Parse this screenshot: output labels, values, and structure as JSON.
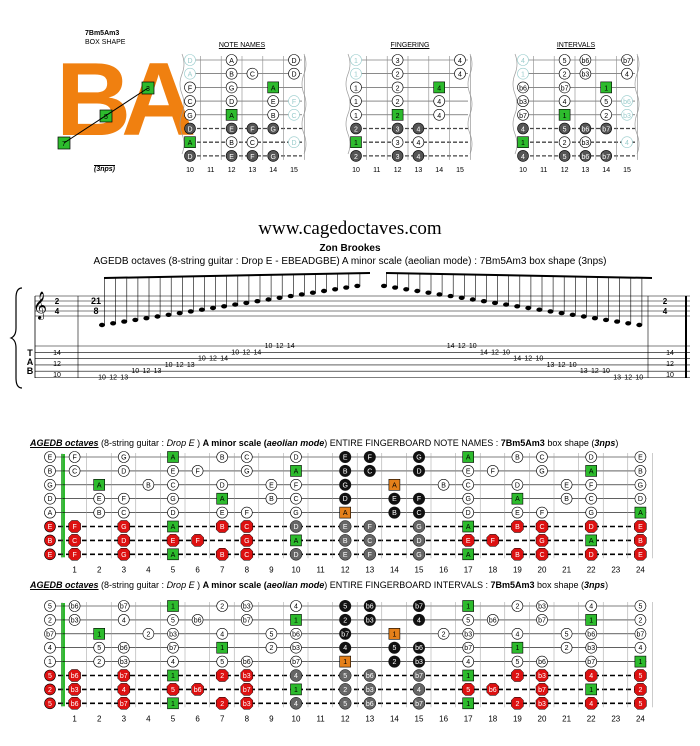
{
  "logo": {
    "shape_name": "7Bm5Am3",
    "box_shape": "BOX SHAPE",
    "letters": "BA",
    "fingers": [
      "3",
      "5",
      "7"
    ],
    "nps": "(3nps)"
  },
  "diagrams": [
    {
      "title": "NOTE NAMES",
      "rows": [
        [
          "D",
          "",
          "A",
          "",
          "",
          "D"
        ],
        [
          "A",
          "",
          "B",
          "C",
          "",
          "D"
        ],
        [
          "F",
          "",
          "G",
          "",
          "A",
          ""
        ],
        [
          "C",
          "",
          "D",
          "",
          "E",
          "F"
        ],
        [
          "G",
          "",
          "A",
          "",
          "B",
          "C"
        ],
        [
          "D",
          "",
          "E",
          "F",
          "G",
          ""
        ],
        [
          "A",
          "",
          "B",
          "C",
          "",
          "D"
        ],
        [
          "D",
          "",
          "E",
          "F",
          "G",
          ""
        ]
      ]
    },
    {
      "title": "FINGERING",
      "rows": [
        [
          "1",
          "",
          "3",
          "",
          "",
          "4"
        ],
        [
          "1",
          "",
          "2",
          "",
          "",
          "4"
        ],
        [
          "1",
          "",
          "2",
          "",
          "4",
          ""
        ],
        [
          "1",
          "",
          "2",
          "",
          "4",
          ""
        ],
        [
          "1",
          "",
          "2",
          "",
          "4",
          ""
        ],
        [
          "2",
          "",
          "3",
          "4",
          "",
          ""
        ],
        [
          "1",
          "",
          "3",
          "4",
          "",
          ""
        ],
        [
          "2",
          "",
          "3",
          "4",
          "",
          ""
        ]
      ]
    },
    {
      "title": "INTERVALS",
      "rows": [
        [
          "4",
          "",
          "5",
          "b6",
          "",
          "b7"
        ],
        [
          "1",
          "",
          "2",
          "b3",
          "",
          "4"
        ],
        [
          "b6",
          "",
          "b7",
          "",
          "1",
          ""
        ],
        [
          "b3",
          "",
          "4",
          "",
          "5",
          "b6"
        ],
        [
          "b7",
          "",
          "1",
          "",
          "2",
          "b3"
        ],
        [
          "4",
          "",
          "5",
          "b6",
          "b7",
          ""
        ],
        [
          "1",
          "",
          "2",
          "b3",
          "",
          "4"
        ],
        [
          "4",
          "",
          "5",
          "b6",
          "b7",
          ""
        ]
      ]
    }
  ],
  "mini_frets": [
    "10",
    "11",
    "12",
    "13",
    "14",
    "15"
  ],
  "header": {
    "site": "www.cagedoctaves.com",
    "author": "Zon Brookes",
    "subtitle": "AGEDB octaves (8-string guitar : Drop E - EBEADGBE) A minor scale (aeolian mode) : 7Bm5Am3 box shape (3nps)"
  },
  "tab": {
    "time_sig": "21/8",
    "left_time": "2/4",
    "clef_label": "TAB",
    "left_col": [
      "14",
      "12",
      "10"
    ],
    "right_col": [
      "14",
      "12",
      "10"
    ],
    "notes_left": "10 12 13 10 12 13 10 12 13 10 12 14 10 12 14 10 12 14 12 13 15 12 13 15",
    "notes_right": "15 13 12 15 13 12 14 12 10 14 12 10 14 12 10 13 12 10 13 12 10 13 12 10"
  },
  "board1": {
    "title_parts": [
      "AGEDB octaves",
      " (8-string guitar : ",
      "Drop E",
      " ) ",
      "A minor scale (",
      "aeolian mode",
      ") ENTIRE FINGERBOARD NOTE NAMES : ",
      "7Bm5Am3",
      " box shape (",
      "3nps",
      ")"
    ],
    "open": [
      "E",
      "B",
      "G",
      "D",
      "A",
      "E",
      "B",
      "E"
    ],
    "rows": [
      [
        "F",
        "",
        "G",
        "",
        "A",
        "",
        "B",
        "C",
        "",
        "D",
        "",
        "E",
        "F",
        "",
        "G",
        "",
        "A",
        "",
        "B",
        "C",
        "",
        "D",
        "",
        "E"
      ],
      [
        "C",
        "",
        "D",
        "",
        "E",
        "F",
        "",
        "G",
        "",
        "A",
        "",
        "B",
        "C",
        "",
        "D",
        "",
        "E",
        "F",
        "",
        "G",
        "",
        "A",
        "",
        "B"
      ],
      [
        "",
        "A",
        "",
        "B",
        "C",
        "",
        "D",
        "",
        "E",
        "F",
        "",
        "G",
        "",
        "A",
        "",
        "B",
        "C",
        "",
        "D",
        "",
        "E",
        "F",
        "",
        "G"
      ],
      [
        "",
        "E",
        "F",
        "",
        "G",
        "",
        "A",
        "",
        "B",
        "C",
        "",
        "D",
        "",
        "E",
        "F",
        "",
        "G",
        "",
        "A",
        "",
        "B",
        "C",
        "",
        "D"
      ],
      [
        "",
        "B",
        "C",
        "",
        "D",
        "",
        "E",
        "F",
        "",
        "G",
        "",
        "A",
        "",
        "B",
        "C",
        "",
        "D",
        "",
        "E",
        "F",
        "",
        "G",
        "",
        "A"
      ],
      [
        "F",
        "",
        "G",
        "",
        "A",
        "",
        "B",
        "C",
        "",
        "D",
        "",
        "E",
        "F",
        "",
        "G",
        "",
        "A",
        "",
        "B",
        "C",
        "",
        "D",
        "",
        "E"
      ],
      [
        "C",
        "",
        "D",
        "",
        "E",
        "F",
        "",
        "G",
        "",
        "A",
        "",
        "B",
        "C",
        "",
        "D",
        "",
        "E",
        "F",
        "",
        "G",
        "",
        "A",
        "",
        "B"
      ],
      [
        "F",
        "",
        "G",
        "",
        "A",
        "",
        "B",
        "C",
        "",
        "D",
        "",
        "E",
        "F",
        "",
        "G",
        "",
        "A",
        "",
        "B",
        "C",
        "",
        "D",
        "",
        "E"
      ]
    ]
  },
  "board2": {
    "title_parts": [
      "AGEDB octaves",
      " (8-string guitar : ",
      "Drop E",
      " ) ",
      "A minor scale (",
      "aeolian mode",
      ") ENTIRE FINGERBOARD INTERVALS : ",
      "7Bm5Am3",
      " box shape (",
      "3nps",
      ")"
    ],
    "open": [
      "5",
      "2",
      "b7",
      "4",
      "1",
      "5",
      "2",
      "5"
    ],
    "rows": [
      [
        "b6",
        "",
        "b7",
        "",
        "1",
        "",
        "2",
        "b3",
        "",
        "4",
        "",
        "5",
        "b6",
        "",
        "b7",
        "",
        "1",
        "",
        "2",
        "b3",
        "",
        "4",
        "",
        "5"
      ],
      [
        "b3",
        "",
        "4",
        "",
        "5",
        "b6",
        "",
        "b7",
        "",
        "1",
        "",
        "2",
        "b3",
        "",
        "4",
        "",
        "5",
        "b6",
        "",
        "b7",
        "",
        "1",
        "",
        "2"
      ],
      [
        "",
        "1",
        "",
        "2",
        "b3",
        "",
        "4",
        "",
        "5",
        "b6",
        "",
        "b7",
        "",
        "1",
        "",
        "2",
        "b3",
        "",
        "4",
        "",
        "5",
        "b6",
        "",
        "b7"
      ],
      [
        "",
        "5",
        "b6",
        "",
        "b7",
        "",
        "1",
        "",
        "2",
        "b3",
        "",
        "4",
        "",
        "5",
        "b6",
        "",
        "b7",
        "",
        "1",
        "",
        "2",
        "b3",
        "",
        "4"
      ],
      [
        "",
        "2",
        "b3",
        "",
        "4",
        "",
        "5",
        "b6",
        "",
        "b7",
        "",
        "1",
        "",
        "2",
        "b3",
        "",
        "4",
        "",
        "5",
        "b6",
        "",
        "b7",
        "",
        "1"
      ],
      [
        "b6",
        "",
        "b7",
        "",
        "1",
        "",
        "2",
        "b3",
        "",
        "4",
        "",
        "5",
        "b6",
        "",
        "b7",
        "",
        "1",
        "",
        "2",
        "b3",
        "",
        "4",
        "",
        "5"
      ],
      [
        "b3",
        "",
        "4",
        "",
        "5",
        "b6",
        "",
        "b7",
        "",
        "1",
        "",
        "2",
        "b3",
        "",
        "4",
        "",
        "5",
        "b6",
        "",
        "b7",
        "",
        "1",
        "",
        "2"
      ],
      [
        "b6",
        "",
        "b7",
        "",
        "1",
        "",
        "2",
        "b3",
        "",
        "4",
        "",
        "5",
        "b6",
        "",
        "b7",
        "",
        "1",
        "",
        "2",
        "b3",
        "",
        "4",
        "",
        "5"
      ]
    ]
  },
  "fret_numbers": [
    "1",
    "2",
    "3",
    "4",
    "5",
    "6",
    "7",
    "8",
    "9",
    "10",
    "11",
    "12",
    "13",
    "14",
    "15",
    "16",
    "17",
    "18",
    "19",
    "20",
    "21",
    "22",
    "23",
    "24"
  ],
  "colors": {
    "root": "#2dbb2d",
    "orange": "#e5801a",
    "red": "#dd1111",
    "dark": "#111111",
    "gray": "#666666",
    "logo": "#f08010"
  }
}
